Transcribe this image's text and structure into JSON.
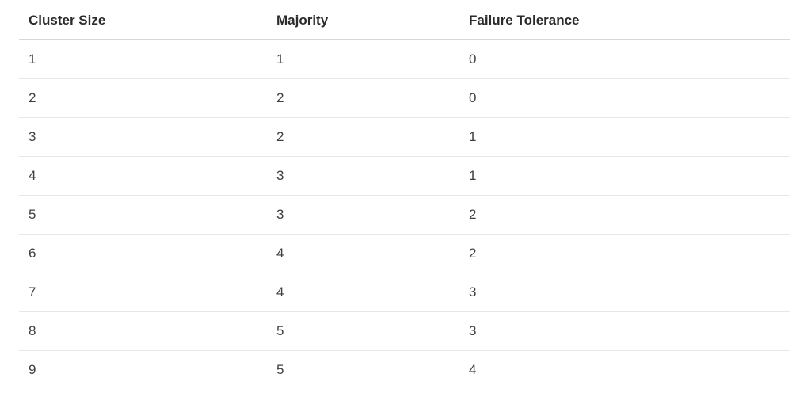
{
  "table": {
    "columns": [
      "Cluster Size",
      "Majority",
      "Failure Tolerance"
    ],
    "rows": [
      [
        "1",
        "1",
        "0"
      ],
      [
        "2",
        "2",
        "0"
      ],
      [
        "3",
        "2",
        "1"
      ],
      [
        "4",
        "3",
        "1"
      ],
      [
        "5",
        "3",
        "2"
      ],
      [
        "6",
        "4",
        "2"
      ],
      [
        "7",
        "4",
        "3"
      ],
      [
        "8",
        "5",
        "3"
      ],
      [
        "9",
        "5",
        "4"
      ]
    ]
  },
  "colors": {
    "background": "#ffffff",
    "header_text": "#2b2b2b",
    "body_text": "#3f3f3f",
    "header_border": "#d8d8d8",
    "row_border": "#e7e7e7"
  }
}
